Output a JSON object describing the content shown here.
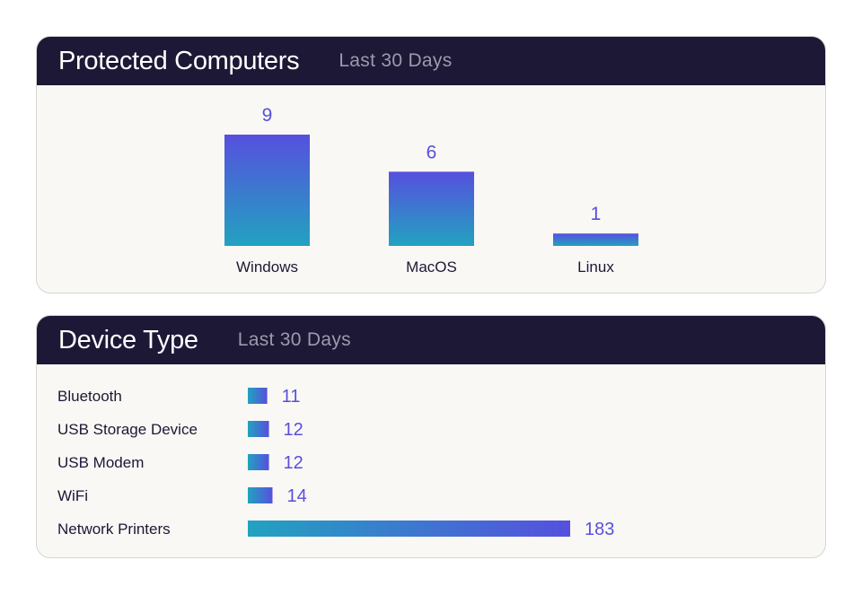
{
  "computers": {
    "title": "Protected Computers",
    "subtitle": "Last 30 Days"
  },
  "devices": {
    "title": "Device Type",
    "subtitle": "Last 30 Days"
  },
  "colors": {
    "header_bg": "#1c1836",
    "card_bg": "#f9f8f4",
    "value": "#5650de",
    "gradient_top": "#5650de",
    "gradient_bottom": "#22a2c0"
  },
  "chart_data": [
    {
      "type": "bar",
      "orientation": "vertical",
      "title": "Protected Computers",
      "categories": [
        "Windows",
        "MacOS",
        "Linux"
      ],
      "values": [
        9,
        6,
        1
      ],
      "ylim": [
        0,
        9
      ],
      "grid": false,
      "legend": "none"
    },
    {
      "type": "bar",
      "orientation": "horizontal",
      "title": "Device Type",
      "categories": [
        "Bluetooth",
        "USB Storage Device",
        "USB Modem",
        "WiFi",
        "Network Printers"
      ],
      "values": [
        11,
        12,
        12,
        14,
        183
      ],
      "xlim": [
        0,
        183
      ],
      "grid": false,
      "legend": "none"
    }
  ]
}
